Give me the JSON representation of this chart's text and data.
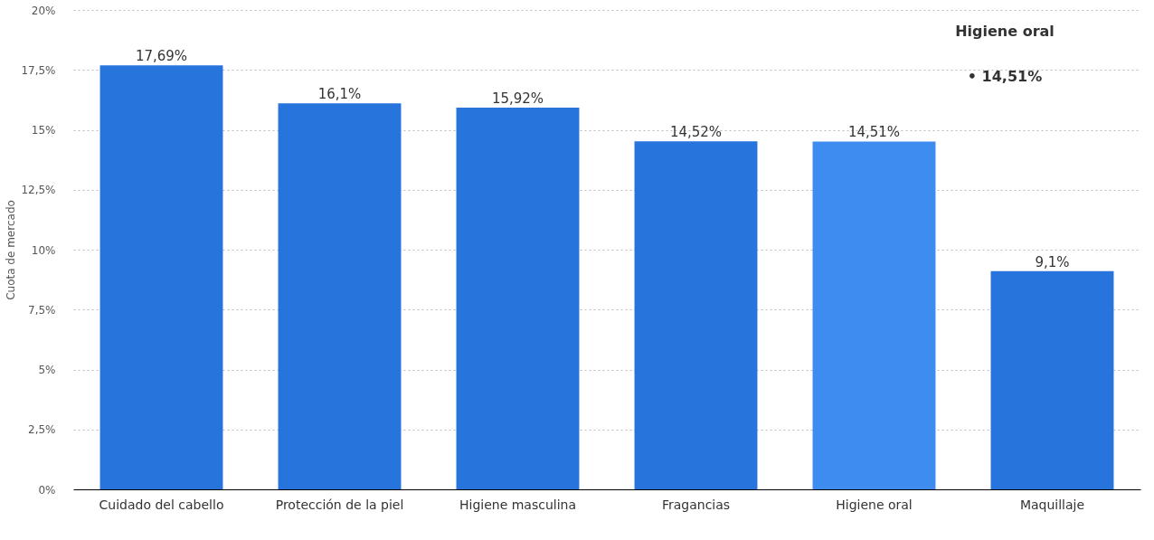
{
  "chart_data": {
    "type": "bar",
    "ylabel": "Cuota de mercado",
    "categories": [
      "Cuidado del cabello",
      "Protección de la piel",
      "Higiene masculina",
      "Fragancias",
      "Higiene oral",
      "Maquillaje"
    ],
    "values": [
      17.69,
      16.1,
      15.92,
      14.52,
      14.51,
      9.1
    ],
    "colors": [
      "#2775dc",
      "#2775dc",
      "#2775dc",
      "#2775dc",
      "#3f8cf0",
      "#2775dc"
    ],
    "value_labels": [
      "17,69%",
      "16,1%",
      "15,92%",
      "14,52%",
      "14,51%",
      "9,1%"
    ],
    "ylim": [
      0,
      20
    ],
    "yticks": [
      {
        "value": 0,
        "label": "0%"
      },
      {
        "value": 2.5,
        "label": "2,5%"
      },
      {
        "value": 5,
        "label": "5%"
      },
      {
        "value": 7.5,
        "label": "7,5%"
      },
      {
        "value": 10,
        "label": "10%"
      },
      {
        "value": 12.5,
        "label": "12,5%"
      },
      {
        "value": 15,
        "label": "15%"
      },
      {
        "value": 17.5,
        "label": "17,5%"
      },
      {
        "value": 20,
        "label": "20%"
      }
    ],
    "grid": "y",
    "annotations": [
      "Higiene oral",
      "• 14,51%"
    ]
  }
}
